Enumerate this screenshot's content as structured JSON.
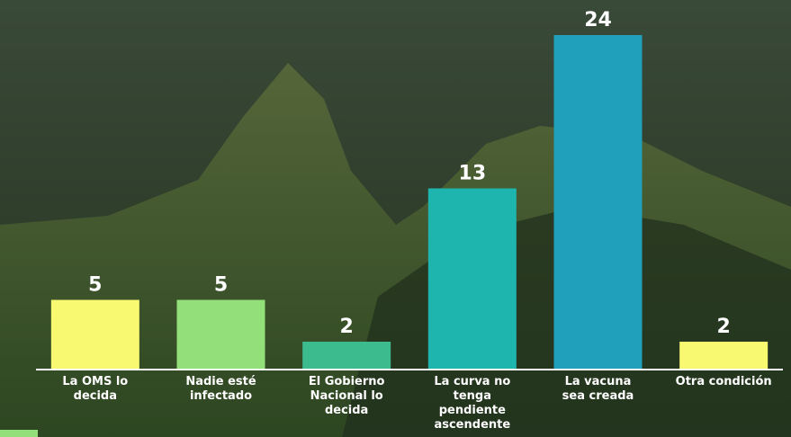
{
  "chart_data": {
    "type": "bar",
    "categories": [
      "La OMS lo decida",
      "Nadie esté infectado",
      "El Gobierno Nacional lo decida",
      "La curva no tenga pendiente ascendente",
      "La vacuna sea creada",
      "Otra condición"
    ],
    "values": [
      5,
      5,
      2,
      13,
      24,
      2
    ],
    "colors": [
      "#f9f871",
      "#93e07a",
      "#3cbb8e",
      "#1db5ad",
      "#21a0bb",
      "#f9f871"
    ]
  }
}
